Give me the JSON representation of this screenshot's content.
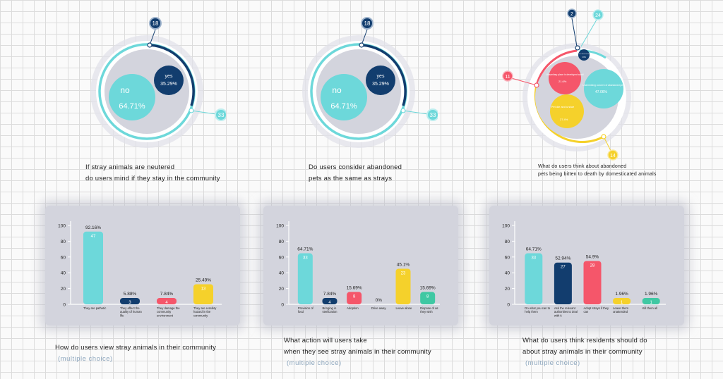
{
  "colors": {
    "cyan": "#6dd8da",
    "navy": "#123d6e",
    "red": "#f5566a",
    "yellow": "#f5d12b",
    "teal": "#3fc8a3",
    "bubble_bg": "#d3d4dd"
  },
  "bubbles": [
    {
      "caption_line1": "If stray animals are neutered",
      "caption_line2": "do users mind if they stay in the community",
      "top_badge": "18",
      "side_badge": "33",
      "items": [
        {
          "label": "no",
          "value": "64.71%",
          "color": "cyan"
        },
        {
          "label": "yes",
          "value": "35.29%",
          "color": "navy"
        }
      ]
    },
    {
      "caption_line1": "Do users consider abandoned",
      "caption_line2": "pets as the same as strays",
      "top_badge": "18",
      "side_badge": "33",
      "items": [
        {
          "label": "no",
          "value": "64.71%",
          "color": "cyan"
        },
        {
          "label": "yes",
          "value": "35.29%",
          "color": "navy"
        }
      ]
    },
    {
      "caption_line1": "What do users think about abandoned",
      "caption_line2": "pets being bitten to death by domesticated animals",
      "badges": [
        "2",
        "24",
        "11",
        "14"
      ],
      "items": [
        {
          "label": "Unsanitary place in developed world",
          "value": "21.6%",
          "color": "red"
        },
        {
          "label": "Undermining concern of abandoned pets",
          "value": "47.06%",
          "color": "cyan"
        },
        {
          "label": "Pet die and undue",
          "value": "27.4%",
          "color": "yellow"
        },
        {
          "label": "Let them fend",
          "value": "3.9%",
          "color": "navy"
        }
      ]
    }
  ],
  "chart_data": [
    {
      "type": "bar",
      "title_line1": "How do users view stray animals in their community",
      "title_line2": "(multiple choice)",
      "ylim": [
        0,
        100
      ],
      "yticks": [
        "100",
        "80",
        "60",
        "40",
        "20",
        "0"
      ],
      "categories": [
        "They are pathetic",
        "They affect the quality of human life",
        "They damage the community environment",
        "They are a safety hazard in the community"
      ],
      "cat_short": [
        "They are pathetic",
        "They affect the quality of human life",
        "They damage the community environment",
        "They are a safety hazard in the community"
      ],
      "values": [
        92.16,
        5.88,
        7.84,
        25.49
      ],
      "value_labels": [
        "92.16%",
        "5.88%",
        "7.84%",
        "25.49%"
      ],
      "counts": [
        "47",
        "3",
        "4",
        "13"
      ],
      "colors": [
        "cyan",
        "navy",
        "red",
        "yellow"
      ]
    },
    {
      "type": "bar",
      "title_line1": "What action will users take",
      "title_line2": "when they see stray animals in their community",
      "title_line3": "(multiple choice)",
      "ylim": [
        0,
        100
      ],
      "yticks": [
        "100",
        "80",
        "60",
        "40",
        "20",
        "0"
      ],
      "categories": [
        "Provision of food",
        "Bringing in sterilization",
        "Adoption",
        "Drive away",
        "Leave alone",
        "Dispose of as they wish"
      ],
      "values": [
        64.71,
        7.84,
        15.69,
        0,
        45.1,
        15.69
      ],
      "value_labels": [
        "64.71%",
        "7.84%",
        "15.69%",
        "0%",
        "45.1%",
        "15.69%"
      ],
      "counts": [
        "33",
        "4",
        "8",
        "",
        "23",
        "8"
      ],
      "colors": [
        "cyan",
        "navy",
        "red",
        "navy",
        "yellow",
        "teal"
      ]
    },
    {
      "type": "bar",
      "title_line1": "What do users think residents should do",
      "title_line2": "about stray animals in their community",
      "title_line3": "(multiple choice)",
      "ylim": [
        0,
        100
      ],
      "yticks": [
        "100",
        "80",
        "60",
        "40",
        "20",
        "0"
      ],
      "categories": [
        "Do what you can to help them",
        "Ask the relevant authorities to deal with it",
        "Adopt strays if they can",
        "Leave them unattended",
        "Kill them all"
      ],
      "values": [
        64.71,
        52.94,
        54.9,
        1.96,
        1.96
      ],
      "value_labels": [
        "64.71%",
        "52.94%",
        "54.9%",
        "1.96%",
        "1.96%"
      ],
      "counts": [
        "33",
        "27",
        "28",
        "1",
        "1"
      ],
      "colors": [
        "cyan",
        "navy",
        "red",
        "yellow",
        "teal"
      ]
    }
  ]
}
